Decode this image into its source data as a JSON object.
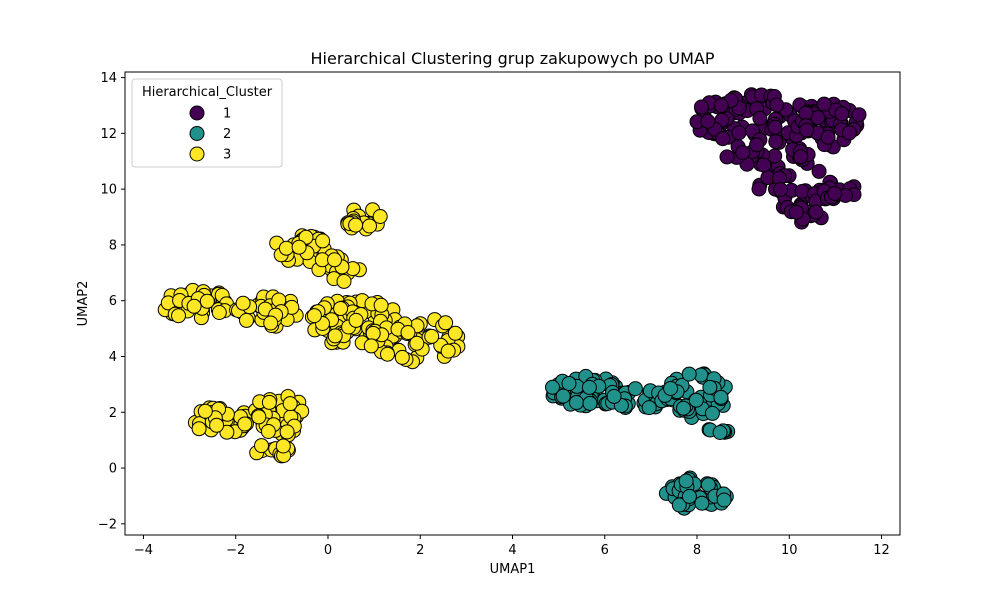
{
  "chart_data": {
    "type": "scatter",
    "title": "Hierarchical Clustering grup zakupowych po UMAP",
    "xlabel": "UMAP1",
    "ylabel": "UMAP2",
    "xlim": [
      -4.4,
      12.4
    ],
    "ylim": [
      -2.4,
      14.2
    ],
    "xticks": [
      -4,
      -2,
      0,
      2,
      4,
      6,
      8,
      10,
      12
    ],
    "yticks": [
      -2,
      0,
      2,
      4,
      6,
      8,
      10,
      12,
      14
    ],
    "grid": false,
    "legend": {
      "title": "Hierarchical_Cluster",
      "placement": "top-left"
    },
    "series": [
      {
        "name": "1",
        "color": "#440154",
        "regions": [
          {
            "cx": 9.3,
            "cy": 12.5,
            "rx": 1.4,
            "ry": 0.9,
            "n": 90
          },
          {
            "cx": 10.9,
            "cy": 12.3,
            "rx": 0.7,
            "ry": 0.8,
            "n": 45
          },
          {
            "cx": 10.0,
            "cy": 10.4,
            "rx": 0.7,
            "ry": 1.2,
            "n": 35
          },
          {
            "cx": 11.0,
            "cy": 9.8,
            "rx": 0.5,
            "ry": 0.5,
            "n": 20
          },
          {
            "cx": 10.4,
            "cy": 9.1,
            "rx": 0.4,
            "ry": 0.3,
            "n": 12
          },
          {
            "cx": 9.1,
            "cy": 11.2,
            "rx": 0.5,
            "ry": 0.5,
            "n": 15
          }
        ]
      },
      {
        "name": "2",
        "color": "#21918c",
        "regions": [
          {
            "cx": 5.6,
            "cy": 2.7,
            "rx": 0.8,
            "ry": 0.6,
            "n": 60
          },
          {
            "cx": 6.8,
            "cy": 2.5,
            "rx": 0.7,
            "ry": 0.4,
            "n": 30
          },
          {
            "cx": 8.0,
            "cy": 2.6,
            "rx": 0.7,
            "ry": 0.8,
            "n": 45
          },
          {
            "cx": 8.5,
            "cy": 1.35,
            "rx": 0.3,
            "ry": 0.1,
            "n": 8
          },
          {
            "cx": 8.0,
            "cy": -0.9,
            "rx": 0.7,
            "ry": 0.6,
            "n": 45
          }
        ]
      },
      {
        "name": "3",
        "color": "#fde725",
        "regions": [
          {
            "cx": -2.9,
            "cy": 5.9,
            "rx": 0.75,
            "ry": 0.55,
            "n": 45
          },
          {
            "cx": -1.3,
            "cy": 5.6,
            "rx": 0.7,
            "ry": 0.55,
            "n": 35
          },
          {
            "cx": 0.6,
            "cy": 5.2,
            "rx": 1.0,
            "ry": 0.9,
            "n": 70
          },
          {
            "cx": 1.9,
            "cy": 4.6,
            "rx": 1.0,
            "ry": 0.8,
            "n": 55
          },
          {
            "cx": -0.6,
            "cy": 7.9,
            "rx": 0.55,
            "ry": 0.55,
            "n": 30
          },
          {
            "cx": 0.2,
            "cy": 7.2,
            "rx": 0.5,
            "ry": 0.55,
            "n": 20
          },
          {
            "cx": 0.8,
            "cy": 8.9,
            "rx": 0.4,
            "ry": 0.45,
            "n": 18
          },
          {
            "cx": -2.3,
            "cy": 1.7,
            "rx": 0.6,
            "ry": 0.55,
            "n": 35
          },
          {
            "cx": -1.0,
            "cy": 1.9,
            "rx": 0.6,
            "ry": 0.8,
            "n": 40
          },
          {
            "cx": -1.2,
            "cy": 0.6,
            "rx": 0.35,
            "ry": 0.3,
            "n": 15
          }
        ]
      }
    ]
  }
}
